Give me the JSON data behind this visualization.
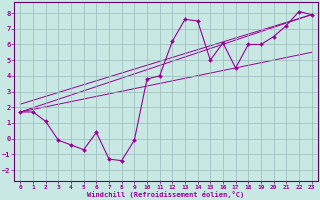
{
  "xlabel": "Windchill (Refroidissement éolien,°C)",
  "xlim": [
    -0.5,
    23.5
  ],
  "ylim": [
    -2.7,
    8.7
  ],
  "xticks": [
    0,
    1,
    2,
    3,
    4,
    5,
    6,
    7,
    8,
    9,
    10,
    11,
    12,
    13,
    14,
    15,
    16,
    17,
    18,
    19,
    20,
    21,
    22,
    23
  ],
  "yticks": [
    -2,
    -1,
    0,
    1,
    2,
    3,
    4,
    5,
    6,
    7,
    8
  ],
  "bg_color": "#c8e8e4",
  "grid_color": "#9ab8b8",
  "line_color": "#990099",
  "spine_color": "#660066",
  "scatter_x": [
    0,
    1,
    2,
    3,
    4,
    5,
    6,
    7,
    8,
    9,
    10,
    11,
    12,
    13,
    14,
    15,
    16,
    17,
    18,
    19,
    20,
    21,
    22,
    23
  ],
  "scatter_y": [
    1.7,
    1.7,
    1.1,
    -0.1,
    -0.4,
    -0.7,
    0.4,
    -1.3,
    -1.4,
    -0.1,
    3.8,
    4.0,
    6.2,
    7.6,
    7.5,
    5.0,
    6.1,
    4.5,
    6.0,
    6.0,
    6.5,
    7.2,
    8.1,
    7.9
  ],
  "trend1_x": [
    0,
    23
  ],
  "trend1_y": [
    1.7,
    7.9
  ],
  "trend2_x": [
    0,
    23
  ],
  "trend2_y": [
    1.7,
    5.5
  ],
  "trend3_x": [
    0,
    23
  ],
  "trend3_y": [
    2.2,
    7.9
  ]
}
